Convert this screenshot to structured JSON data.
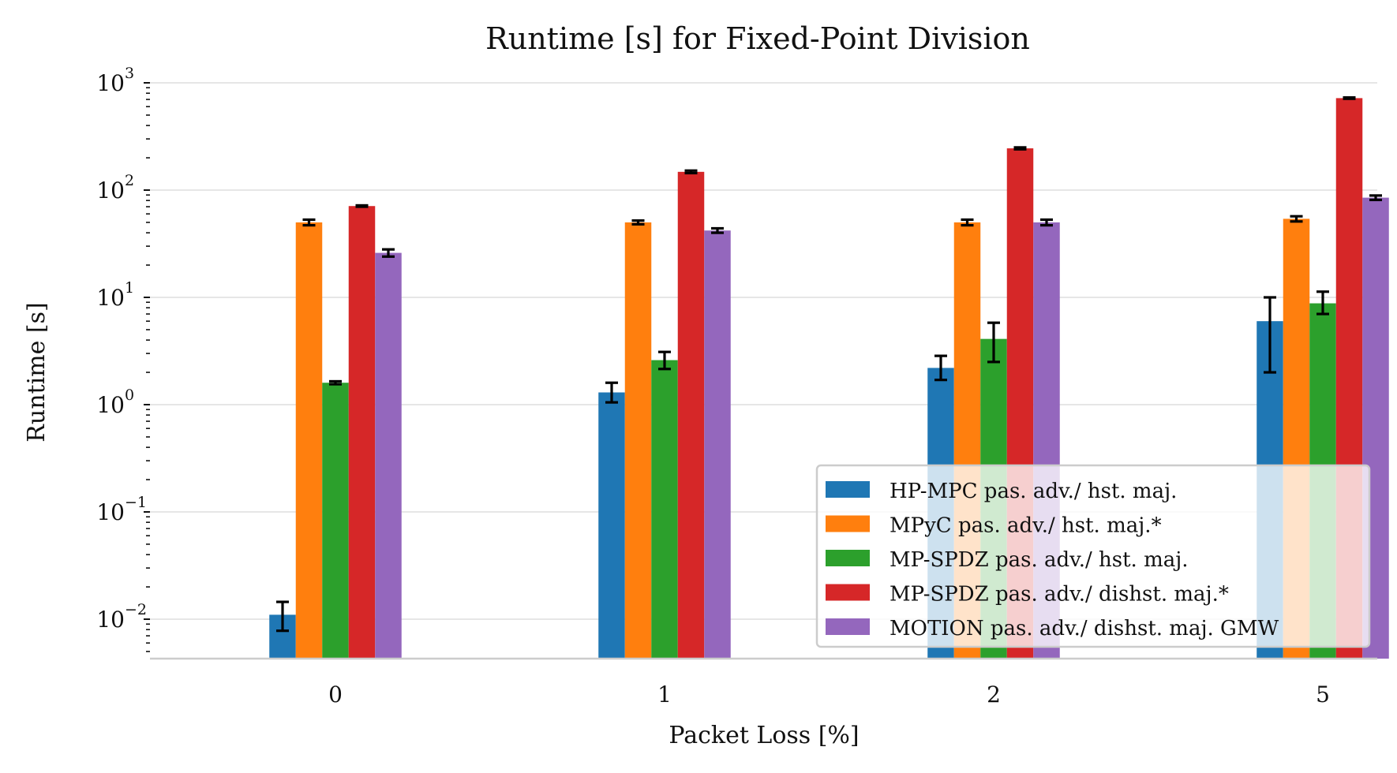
{
  "chart_data": {
    "type": "bar",
    "title": "Runtime [s] for Fixed-Point Division",
    "xlabel": "Packet Loss [%]",
    "ylabel": "Runtime [s]",
    "yscale": "log",
    "ylim": [
      0.0045,
      1000
    ],
    "grid": true,
    "legend_position": "bottom-right",
    "categories": [
      "0",
      "1",
      "2",
      "5"
    ],
    "yticks": [
      {
        "base": "10",
        "exp": "−2",
        "value": 0.01
      },
      {
        "base": "10",
        "exp": "−1",
        "value": 0.1
      },
      {
        "base": "10",
        "exp": "0",
        "value": 1
      },
      {
        "base": "10",
        "exp": "1",
        "value": 10
      },
      {
        "base": "10",
        "exp": "2",
        "value": 100
      },
      {
        "base": "10",
        "exp": "3",
        "value": 1000
      }
    ],
    "series": [
      {
        "name": "HP-MPC pas. adv./ hst. maj.",
        "color": "#1f77b4",
        "values": [
          0.011,
          1.3,
          2.2,
          6.0
        ],
        "err_low": [
          0.0078,
          1.05,
          1.7,
          2.0
        ],
        "err_high": [
          0.0145,
          1.6,
          2.85,
          10.0
        ]
      },
      {
        "name": "MPyC pas. adv./ hst. maj.*",
        "color": "#ff7f0e",
        "values": [
          50,
          50,
          50,
          54
        ],
        "err_low": [
          47,
          48,
          47,
          51
        ],
        "err_high": [
          53,
          52,
          53,
          57
        ]
      },
      {
        "name": "MP-SPDZ pas. adv./ hst. maj.",
        "color": "#2ca02c",
        "values": [
          1.6,
          2.6,
          4.1,
          8.8
        ],
        "err_low": [
          1.55,
          2.15,
          2.5,
          7.0
        ],
        "err_high": [
          1.65,
          3.1,
          5.8,
          11.3
        ]
      },
      {
        "name": "MP-SPDZ pas. adv./ dishst. maj.*",
        "color": "#d62728",
        "values": [
          71,
          148,
          245,
          720
        ],
        "err_low": [
          70,
          144,
          240,
          710
        ],
        "err_high": [
          72,
          152,
          250,
          730
        ]
      },
      {
        "name": "MOTION pas. adv./ dishst. maj. GMW",
        "color": "#9467bd",
        "values": [
          26,
          42,
          50,
          85
        ],
        "err_low": [
          24,
          40,
          47,
          81
        ],
        "err_high": [
          28,
          44,
          53,
          89
        ]
      }
    ]
  }
}
